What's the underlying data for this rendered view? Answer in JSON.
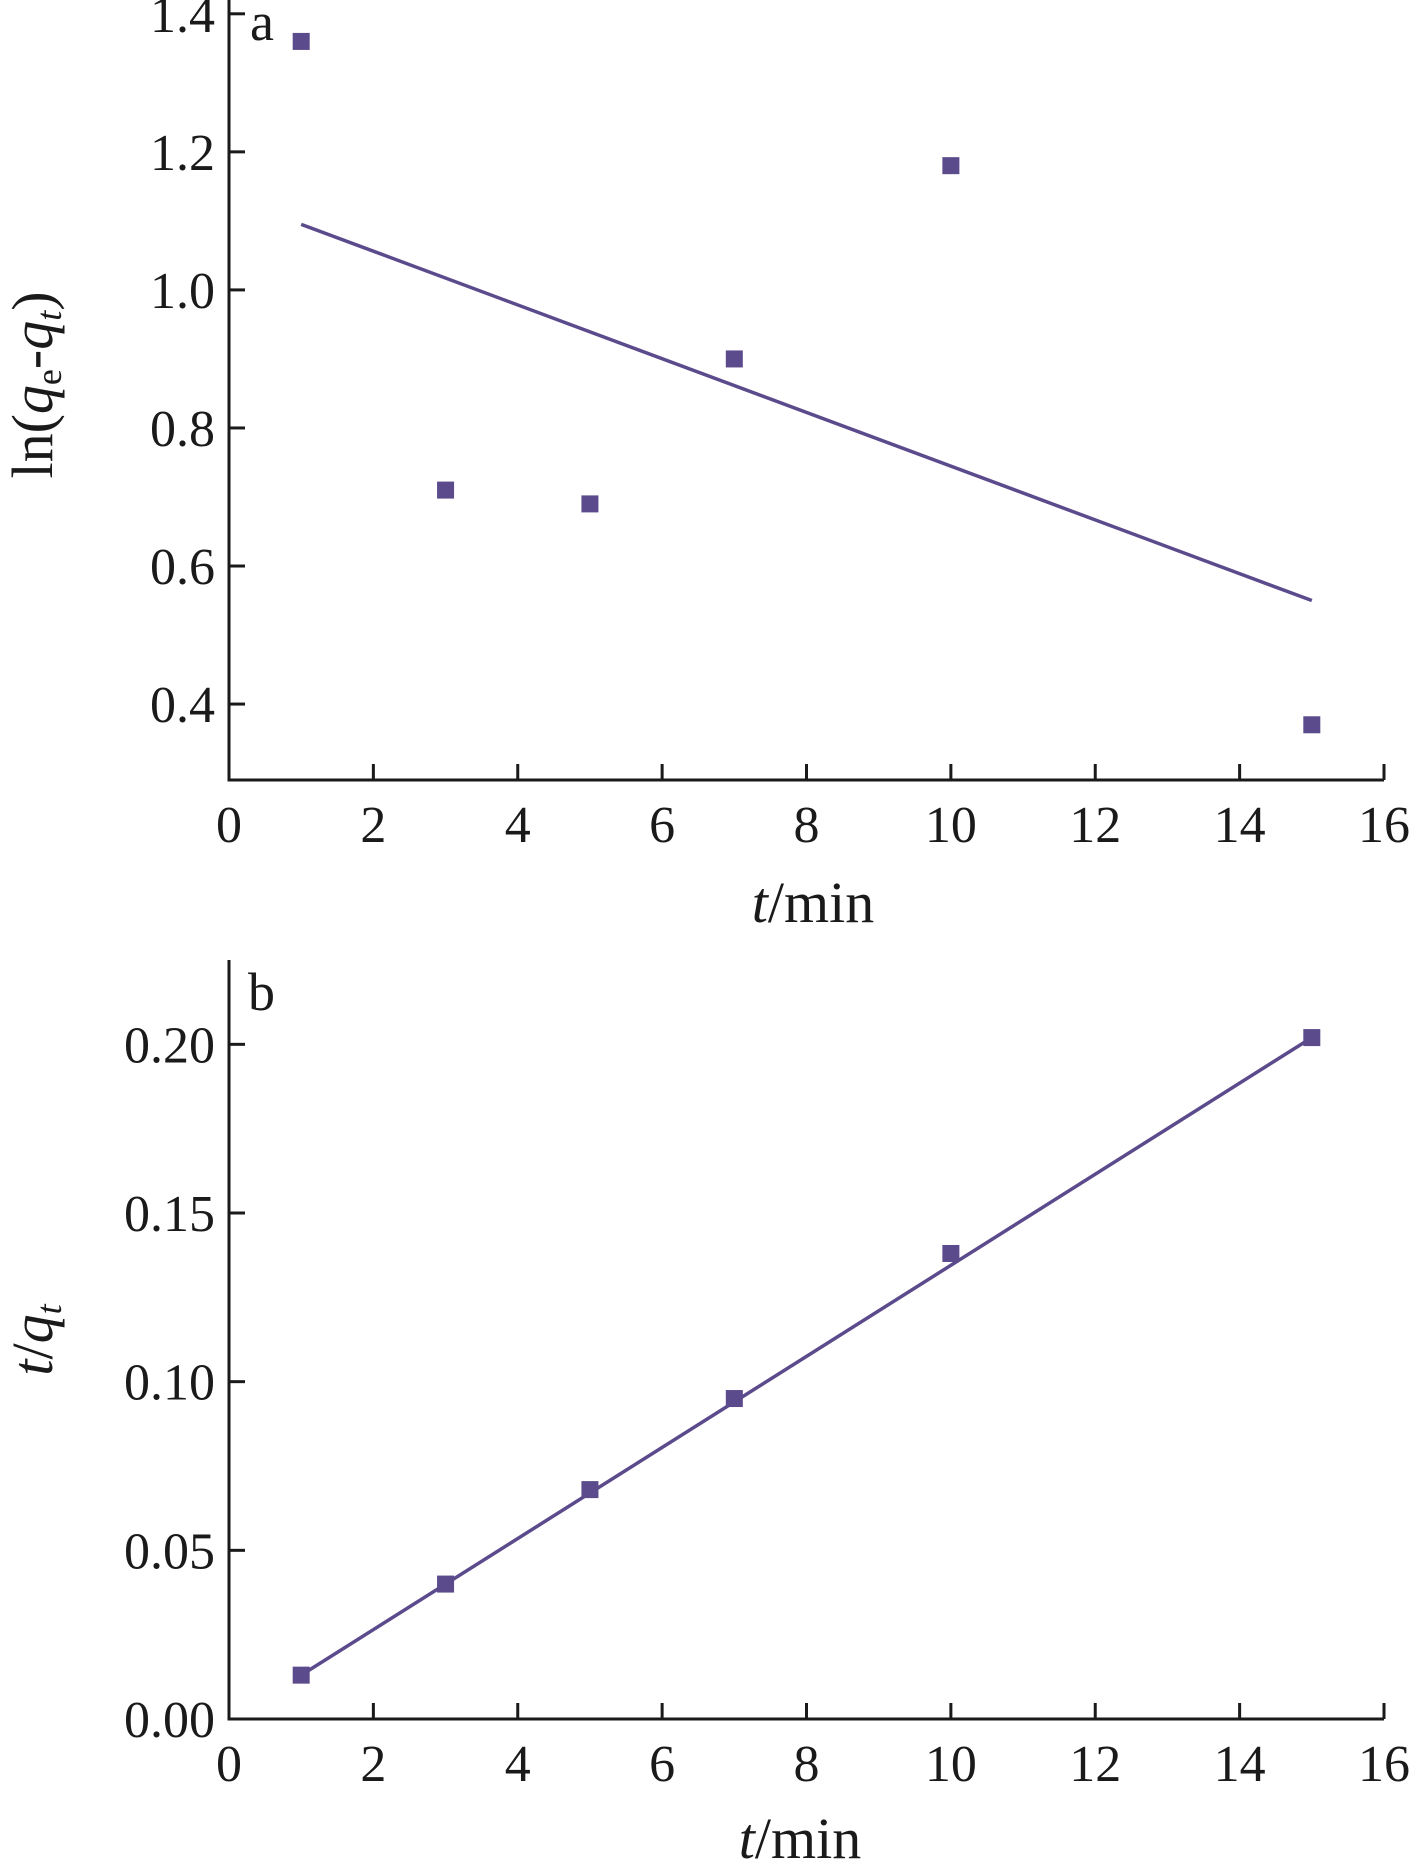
{
  "colors": {
    "marker": "#5b4a8c",
    "fit_line": "#5b4a8c",
    "axis": "#1a1a1a"
  },
  "chart_data": [
    {
      "type": "scatter",
      "panel_label": "a",
      "xlabel": {
        "italic": "t",
        "rest": "/min"
      },
      "ylabel": {
        "prefix": "ln(",
        "q1": "q",
        "sub1": "e",
        "dash": "-",
        "q2": "q",
        "sub2": "t",
        "suffix": ")"
      },
      "xlim": [
        0,
        16
      ],
      "ylim": [
        0.29,
        1.42
      ],
      "xticks": [
        0,
        2,
        4,
        6,
        8,
        10,
        12,
        14,
        16
      ],
      "yticks": [
        0.4,
        0.6,
        0.8,
        1.0,
        1.2,
        1.4
      ],
      "ytick_decimals": 1,
      "points": [
        {
          "x": 1,
          "y": 1.36
        },
        {
          "x": 3,
          "y": 0.71
        },
        {
          "x": 5,
          "y": 0.69
        },
        {
          "x": 7,
          "y": 0.9
        },
        {
          "x": 10,
          "y": 1.18
        },
        {
          "x": 15,
          "y": 0.37
        }
      ],
      "fit_line": {
        "x": [
          1,
          15
        ],
        "y": [
          1.095,
          0.55
        ]
      },
      "grid": false
    },
    {
      "type": "scatter",
      "panel_label": "b",
      "xlabel": {
        "italic": "t",
        "rest": "/min"
      },
      "ylabel": {
        "t": "t",
        "slash": "/",
        "q": "q",
        "sub": "t"
      },
      "xlim": [
        0,
        16
      ],
      "ylim": [
        0.0,
        0.225
      ],
      "xticks": [
        0,
        2,
        4,
        6,
        8,
        10,
        12,
        14,
        16
      ],
      "yticks": [
        0.0,
        0.05,
        0.1,
        0.15,
        0.2
      ],
      "ytick_decimals": 2,
      "points": [
        {
          "x": 1,
          "y": 0.013
        },
        {
          "x": 3,
          "y": 0.04
        },
        {
          "x": 5,
          "y": 0.068
        },
        {
          "x": 7,
          "y": 0.095
        },
        {
          "x": 10,
          "y": 0.138
        },
        {
          "x": 15,
          "y": 0.202
        }
      ],
      "fit_line": {
        "x": [
          1,
          15
        ],
        "y": [
          0.013,
          0.202
        ]
      },
      "grid": false
    }
  ]
}
